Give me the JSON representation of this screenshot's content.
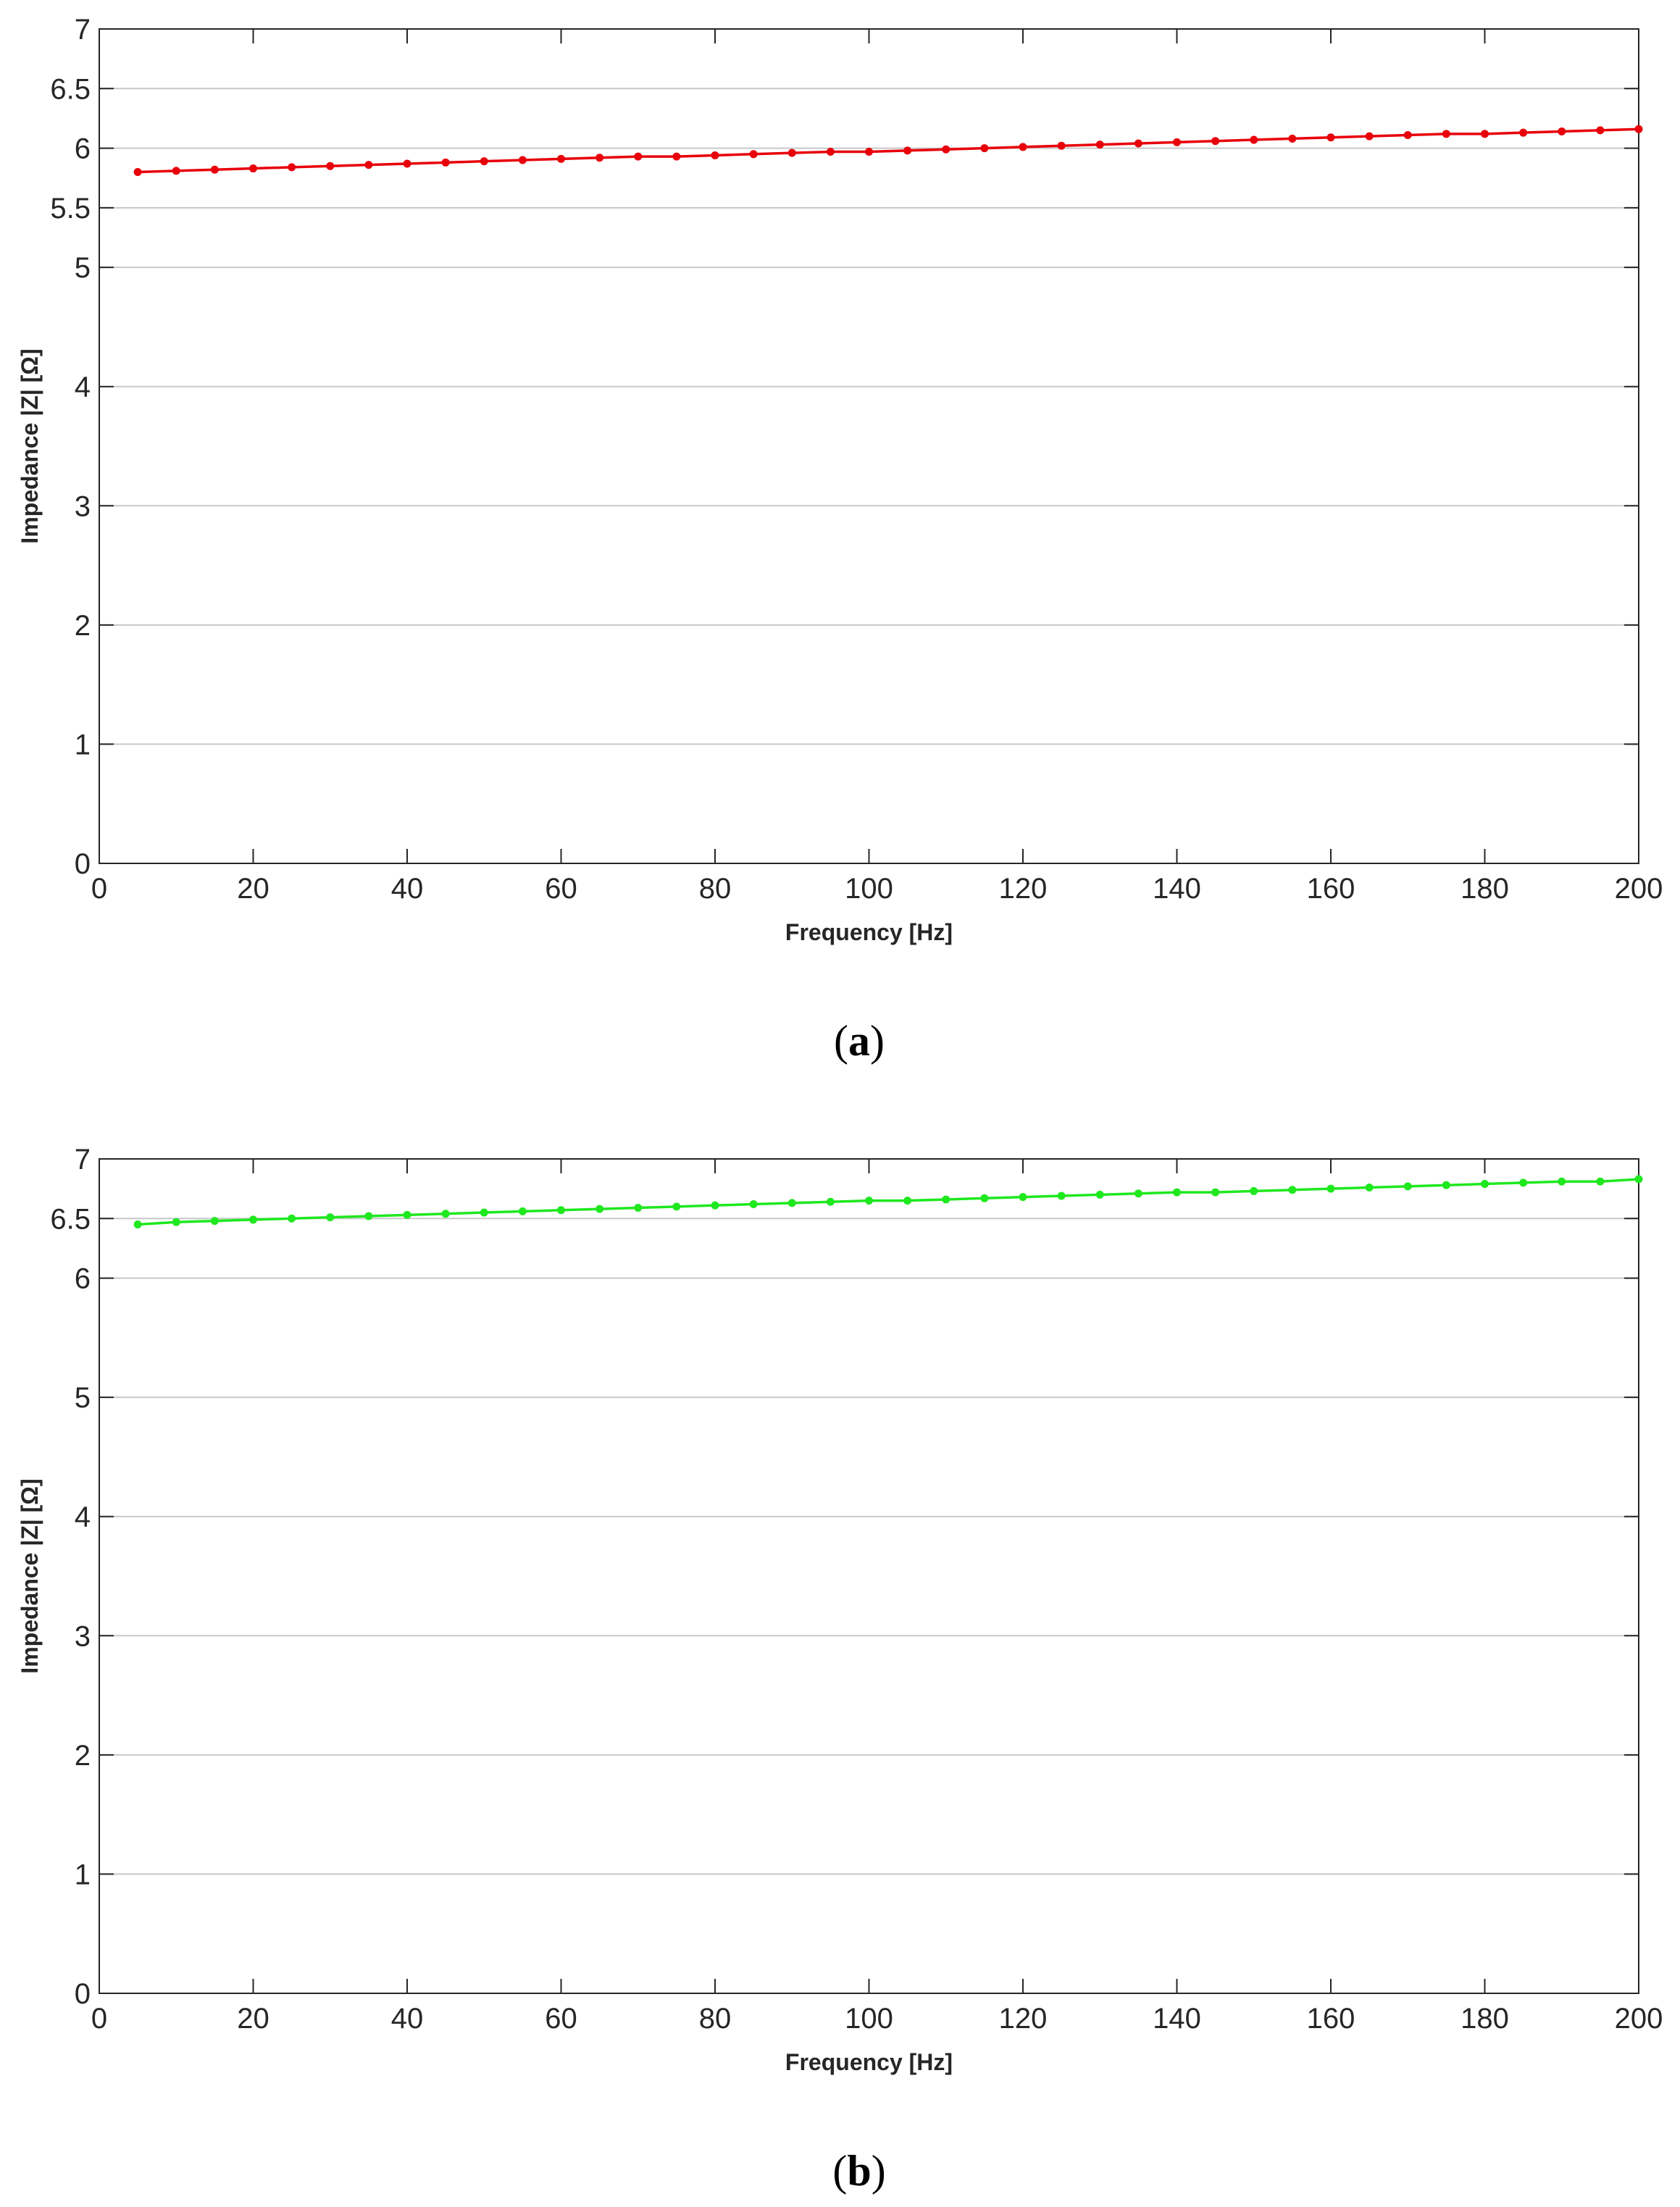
{
  "chart_data": [
    {
      "type": "line",
      "caption_open": "(",
      "caption_letter": "a",
      "caption_close": ")",
      "xlabel": "Frequency [Hz]",
      "ylabel": "Impedance |Z| [Ω]",
      "xlim": [
        0,
        200
      ],
      "ylim": [
        0,
        7
      ],
      "xticks": [
        0,
        20,
        40,
        60,
        80,
        100,
        120,
        140,
        160,
        180,
        200
      ],
      "yticks": [
        0,
        1,
        2,
        3,
        4,
        5,
        5.5,
        6,
        6.5,
        7
      ],
      "grid": "horizontal",
      "series": [
        {
          "color": "#e8000b",
          "marker": "dot",
          "x": [
            5,
            10,
            15,
            20,
            25,
            30,
            35,
            40,
            45,
            50,
            55,
            60,
            65,
            70,
            75,
            80,
            85,
            90,
            95,
            100,
            105,
            110,
            115,
            120,
            125,
            130,
            135,
            140,
            145,
            150,
            155,
            160,
            165,
            170,
            175,
            180,
            185,
            190,
            195,
            200
          ],
          "y": [
            5.8,
            5.81,
            5.82,
            5.83,
            5.84,
            5.85,
            5.86,
            5.87,
            5.88,
            5.89,
            5.9,
            5.91,
            5.92,
            5.93,
            5.93,
            5.94,
            5.95,
            5.96,
            5.97,
            5.97,
            5.98,
            5.99,
            6.0,
            6.01,
            6.02,
            6.03,
            6.04,
            6.05,
            6.06,
            6.07,
            6.08,
            6.09,
            6.1,
            6.11,
            6.12,
            6.12,
            6.13,
            6.14,
            6.15,
            6.16
          ]
        }
      ]
    },
    {
      "type": "line",
      "caption_open": "(",
      "caption_letter": "b",
      "caption_close": ")",
      "xlabel": "Frequency [Hz]",
      "ylabel": "Impedance |Z| [Ω]",
      "xlim": [
        0,
        200
      ],
      "ylim": [
        0,
        7
      ],
      "xticks": [
        0,
        20,
        40,
        60,
        80,
        100,
        120,
        140,
        160,
        180,
        200
      ],
      "yticks": [
        0,
        1,
        2,
        3,
        4,
        5,
        6,
        6.5,
        7
      ],
      "grid": "horizontal",
      "series": [
        {
          "color": "#1fe81f",
          "marker": "dot",
          "x": [
            5,
            10,
            15,
            20,
            25,
            30,
            35,
            40,
            45,
            50,
            55,
            60,
            65,
            70,
            75,
            80,
            85,
            90,
            95,
            100,
            105,
            110,
            115,
            120,
            125,
            130,
            135,
            140,
            145,
            150,
            155,
            160,
            165,
            170,
            175,
            180,
            185,
            190,
            195,
            200
          ],
          "y": [
            6.45,
            6.47,
            6.48,
            6.49,
            6.5,
            6.51,
            6.52,
            6.53,
            6.54,
            6.55,
            6.56,
            6.57,
            6.58,
            6.59,
            6.6,
            6.61,
            6.62,
            6.63,
            6.64,
            6.65,
            6.65,
            6.66,
            6.67,
            6.68,
            6.69,
            6.7,
            6.71,
            6.72,
            6.72,
            6.73,
            6.74,
            6.75,
            6.76,
            6.77,
            6.78,
            6.79,
            6.8,
            6.81,
            6.81,
            6.83
          ]
        }
      ]
    }
  ]
}
